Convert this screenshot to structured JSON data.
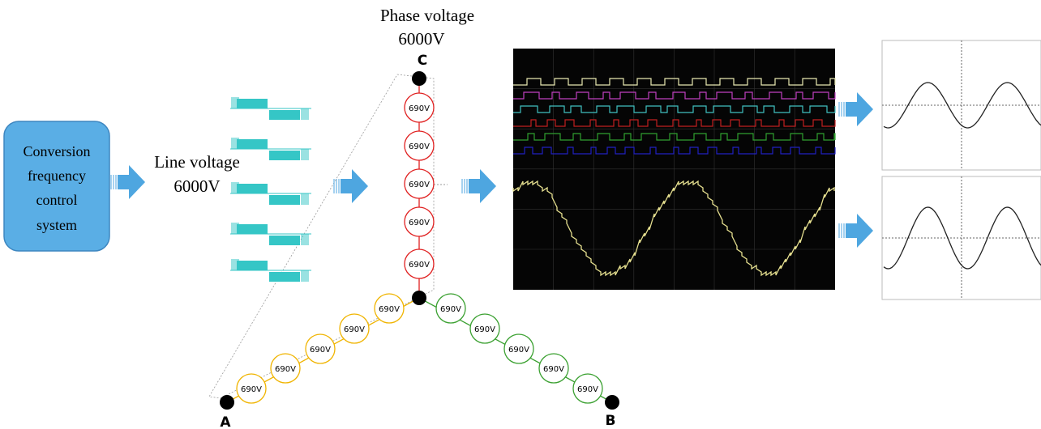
{
  "control_box": {
    "lines": [
      "Conversion",
      "frequency",
      "control",
      "system"
    ]
  },
  "line_voltage": {
    "label": "Line voltage",
    "value": "6000V"
  },
  "phase_voltage": {
    "label": "Phase voltage",
    "value": "6000V"
  },
  "terminals": {
    "c": "C",
    "a": "A",
    "b": "B"
  },
  "cells": {
    "c": [
      "690V",
      "690V",
      "690V",
      "690V",
      "690V"
    ],
    "a": [
      "690V",
      "690V",
      "690V",
      "690V",
      "690V"
    ],
    "b": [
      "690V",
      "690V",
      "690V",
      "690V",
      "690V"
    ]
  }
}
